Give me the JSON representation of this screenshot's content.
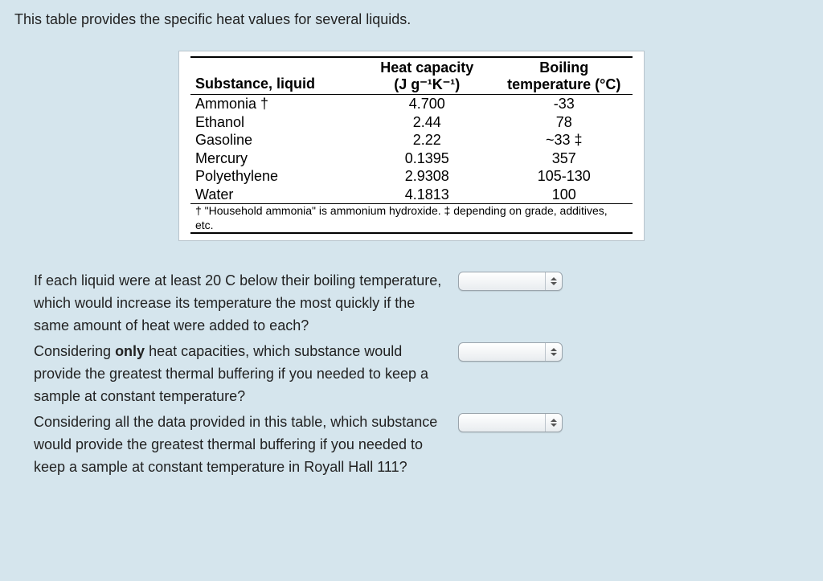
{
  "intro": "This table provides the specific heat values for several liquids.",
  "table": {
    "headers": {
      "substance": "Substance, liquid",
      "heat_capacity_line1": "Heat capacity",
      "heat_capacity_line2": "(J g⁻¹K⁻¹)",
      "boiling_line1": "Boiling",
      "boiling_line2": "temperature (°C)"
    },
    "rows": [
      {
        "name": "Ammonia †",
        "hc": "4.700",
        "bt": "-33"
      },
      {
        "name": "Ethanol",
        "hc": "2.44",
        "bt": "78"
      },
      {
        "name": "Gasoline",
        "hc": "2.22",
        "bt": "~33 ‡"
      },
      {
        "name": "Mercury",
        "hc": "0.1395",
        "bt": "357"
      },
      {
        "name": "Polyethylene",
        "hc": "2.9308",
        "bt": "105-130"
      },
      {
        "name": "Water",
        "hc": "4.1813",
        "bt": "100"
      }
    ],
    "footnote": "† \"Household ammonia\" is ammonium hydroxide. ‡ depending on grade, additives, etc."
  },
  "questions": {
    "q1": "If each liquid were at least 20 C below their boiling temperature, which would increase its temperature the most quickly if the same amount of heat were added to each?",
    "q2_pre": "Considering ",
    "q2_bold": "only",
    "q2_post": " heat capacities, which substance would provide the greatest thermal buffering if you needed to keep a sample at constant temperature?",
    "q3": "Considering all the data provided in this table, which substance would provide the greatest thermal buffering if you needed to keep a sample at constant temperature in Royall Hall 111?"
  },
  "colors": {
    "page_bg": "#d5e5ed",
    "card_bg": "#ffffff",
    "card_border": "#b8c4cc",
    "text": "#222222",
    "rule": "#000000"
  }
}
